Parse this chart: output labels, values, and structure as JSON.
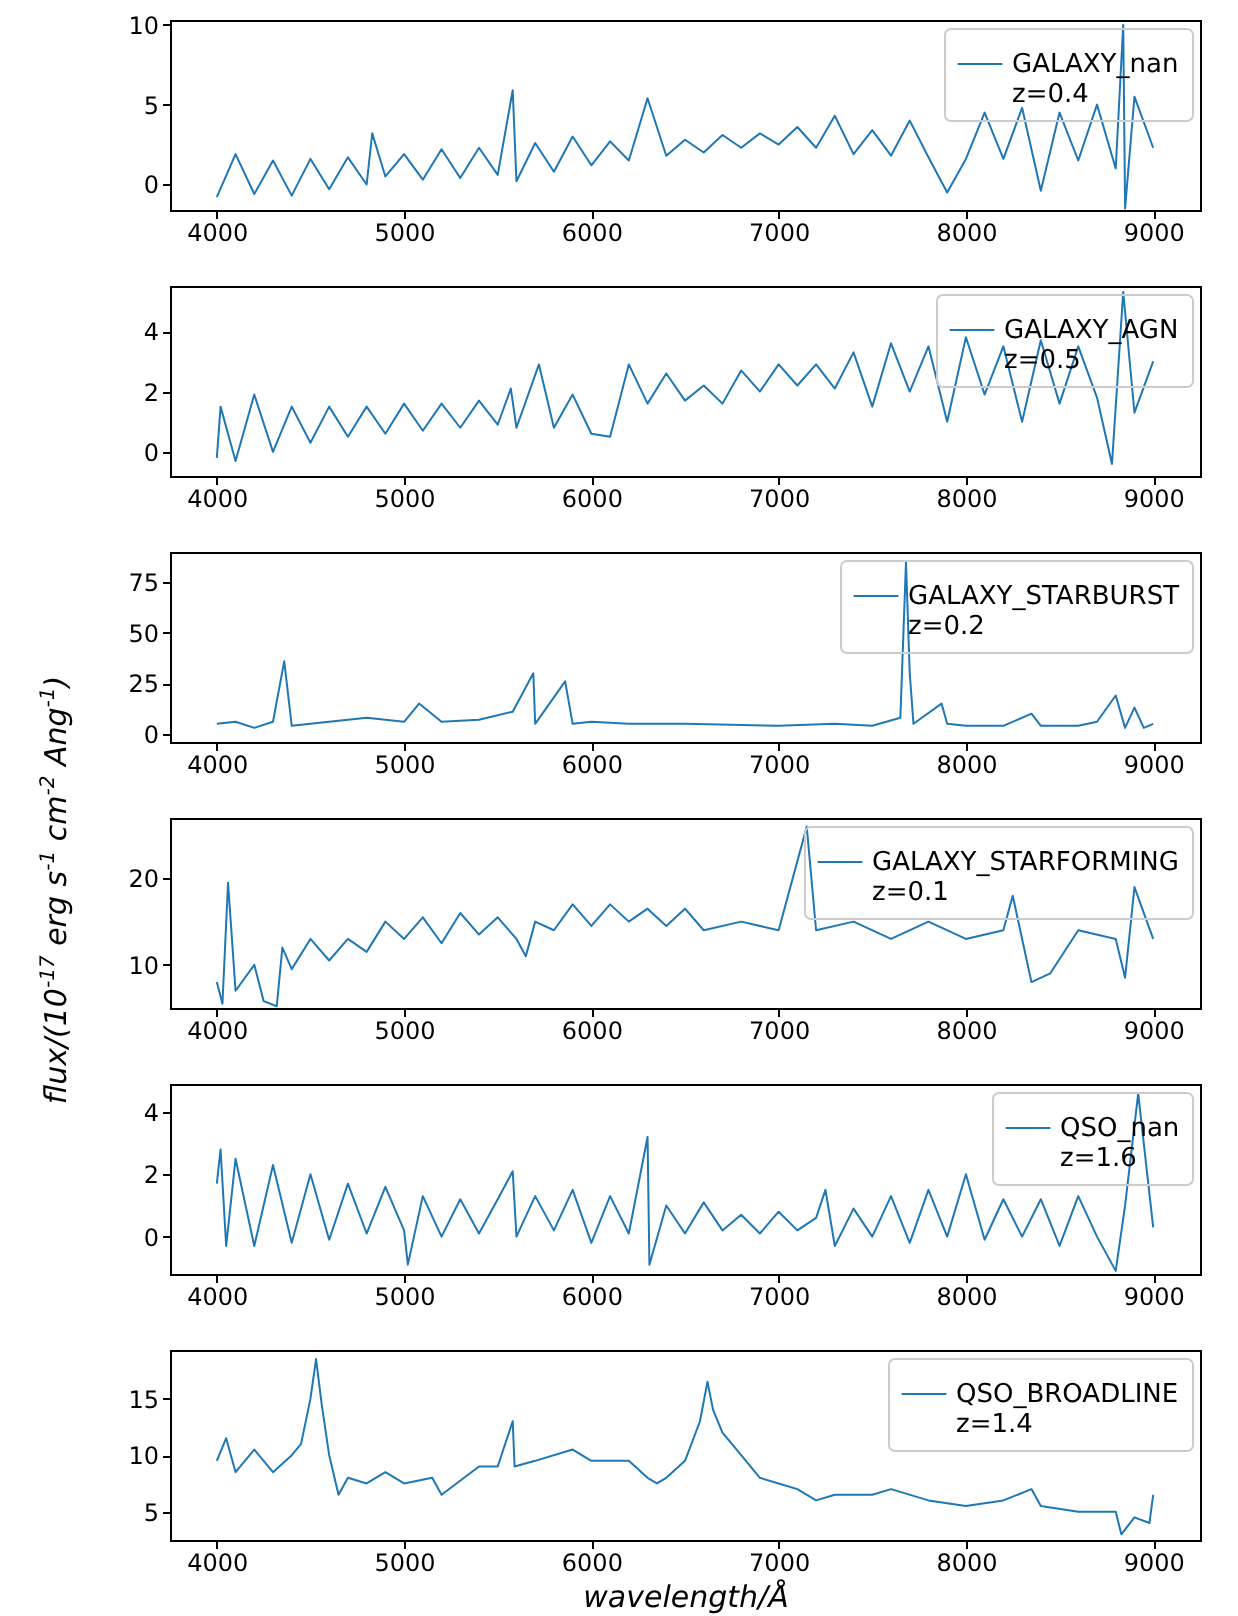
{
  "chart_data": [
    {
      "type": "line",
      "x": [
        4000,
        4100,
        4200,
        4300,
        4400,
        4500,
        4600,
        4700,
        4800,
        4830,
        4900,
        5000,
        5100,
        5200,
        5300,
        5400,
        5500,
        5580,
        5600,
        5700,
        5800,
        5900,
        6000,
        6100,
        6200,
        6300,
        6400,
        6500,
        6600,
        6700,
        6800,
        6900,
        7000,
        7100,
        7200,
        7300,
        7400,
        7500,
        7600,
        7700,
        7800,
        7900,
        8000,
        8100,
        8200,
        8300,
        8400,
        8500,
        8600,
        8700,
        8800,
        8840,
        8850,
        8900,
        9000
      ],
      "series": [
        {
          "name": "GALAXY_nan\nz=0.4",
          "color": "#1f77b4",
          "values": [
            -0.8,
            1.9,
            -0.6,
            1.5,
            -0.7,
            1.6,
            -0.3,
            1.7,
            0,
            3.2,
            0.5,
            1.9,
            0.3,
            2.2,
            0.4,
            2.3,
            0.6,
            5.9,
            0.2,
            2.6,
            0.8,
            3.0,
            1.2,
            2.7,
            1.5,
            5.4,
            1.8,
            2.8,
            2.0,
            3.1,
            2.3,
            3.2,
            2.5,
            3.6,
            2.3,
            4.3,
            1.9,
            3.4,
            1.8,
            4.0,
            1.7,
            -0.5,
            1.6,
            4.5,
            1.6,
            4.8,
            -0.4,
            4.5,
            1.5,
            5.0,
            1.0,
            10.0,
            -1.5,
            5.5,
            2.3
          ]
        }
      ],
      "xlim": [
        3750,
        9250
      ],
      "xticks": [
        4000,
        5000,
        6000,
        7000,
        8000,
        9000
      ],
      "ylim": [
        -1.6,
        10.3
      ],
      "yticks": [
        0,
        5,
        10
      ],
      "legend": "top right"
    },
    {
      "type": "line",
      "x": [
        4000,
        4020,
        4100,
        4200,
        4300,
        4400,
        4500,
        4600,
        4700,
        4800,
        4900,
        5000,
        5100,
        5200,
        5300,
        5400,
        5500,
        5570,
        5600,
        5720,
        5800,
        5900,
        6000,
        6100,
        6200,
        6300,
        6400,
        6500,
        6600,
        6700,
        6800,
        6900,
        7000,
        7100,
        7200,
        7300,
        7400,
        7500,
        7600,
        7700,
        7800,
        7900,
        8000,
        8100,
        8200,
        8300,
        8400,
        8500,
        8600,
        8700,
        8780,
        8840,
        8900,
        9000
      ],
      "series": [
        {
          "name": "GALAXY_AGN\nz=0.5",
          "color": "#1f77b4",
          "values": [
            -0.2,
            1.5,
            -0.3,
            1.9,
            0,
            1.5,
            0.3,
            1.5,
            0.5,
            1.5,
            0.6,
            1.6,
            0.7,
            1.6,
            0.8,
            1.7,
            0.9,
            2.1,
            0.8,
            2.9,
            0.8,
            1.9,
            0.6,
            0.5,
            2.9,
            1.6,
            2.6,
            1.7,
            2.2,
            1.6,
            2.7,
            2.0,
            2.9,
            2.2,
            2.9,
            2.1,
            3.3,
            1.5,
            3.6,
            2.0,
            3.5,
            1.0,
            3.8,
            1.9,
            3.5,
            1.0,
            3.7,
            1.6,
            3.5,
            1.8,
            -0.4,
            5.3,
            1.3,
            3.0
          ]
        }
      ],
      "xlim": [
        3750,
        9250
      ],
      "xticks": [
        4000,
        5000,
        6000,
        7000,
        8000,
        9000
      ],
      "ylim": [
        -0.8,
        5.5
      ],
      "yticks": [
        0,
        2,
        4
      ],
      "legend": "top right"
    },
    {
      "type": "line",
      "x": [
        4000,
        4100,
        4200,
        4300,
        4360,
        4400,
        4500,
        4600,
        4800,
        5000,
        5080,
        5200,
        5400,
        5580,
        5690,
        5700,
        5860,
        5900,
        6000,
        6200,
        6500,
        7000,
        7300,
        7500,
        7650,
        7680,
        7700,
        7720,
        7870,
        7900,
        8000,
        8200,
        8350,
        8400,
        8600,
        8700,
        8800,
        8850,
        8900,
        8950,
        9000
      ],
      "series": [
        {
          "name": "GALAXY_STARBURST\nz=0.2",
          "color": "#1f77b4",
          "values": [
            5,
            6,
            3,
            6,
            36,
            4,
            5,
            6,
            8,
            6,
            15,
            6,
            7,
            11,
            30,
            5,
            26,
            5,
            6,
            5,
            5,
            4,
            5,
            4,
            8,
            85,
            30,
            5,
            15,
            5,
            4,
            4,
            10,
            4,
            4,
            6,
            19,
            3,
            13,
            3,
            5
          ]
        }
      ],
      "xlim": [
        3750,
        9250
      ],
      "xticks": [
        4000,
        5000,
        6000,
        7000,
        8000,
        9000
      ],
      "ylim": [
        -4,
        90
      ],
      "yticks": [
        0,
        25,
        50,
        75
      ],
      "legend": "top right"
    },
    {
      "type": "line",
      "x": [
        4000,
        4030,
        4060,
        4100,
        4200,
        4250,
        4320,
        4350,
        4400,
        4500,
        4600,
        4700,
        4800,
        4900,
        5000,
        5100,
        5200,
        5300,
        5400,
        5500,
        5600,
        5650,
        5700,
        5800,
        5900,
        6000,
        6100,
        6200,
        6300,
        6400,
        6500,
        6600,
        6800,
        7000,
        7150,
        7200,
        7400,
        7600,
        7800,
        8000,
        8200,
        8250,
        8350,
        8450,
        8600,
        8800,
        8850,
        8900,
        9000
      ],
      "series": [
        {
          "name": "GALAXY_STARFORMING\nz=0.1",
          "color": "#1f77b4",
          "values": [
            8,
            5.5,
            19.5,
            7,
            10,
            5.8,
            5.2,
            12,
            9.5,
            13,
            10.5,
            13,
            11.5,
            15,
            13,
            15.5,
            12.5,
            16,
            13.5,
            15.5,
            13,
            11,
            15,
            14,
            17,
            14.5,
            17,
            15,
            16.5,
            14.5,
            16.5,
            14,
            15,
            14,
            26,
            14,
            15,
            13,
            15,
            13,
            14,
            18,
            8,
            9,
            14,
            13,
            8.5,
            19,
            13
          ]
        }
      ],
      "xlim": [
        3750,
        9250
      ],
      "xticks": [
        4000,
        5000,
        6000,
        7000,
        8000,
        9000
      ],
      "ylim": [
        5,
        27
      ],
      "yticks": [
        10,
        20
      ],
      "legend": "top right",
      "ylabel": "flux/(10$^{-17}$ erg s$^{-1}$ cm$^{-2}$ Ang$^{-1}$)"
    },
    {
      "type": "line",
      "x": [
        4000,
        4020,
        4050,
        4100,
        4200,
        4300,
        4400,
        4500,
        4600,
        4700,
        4800,
        4900,
        5000,
        5020,
        5100,
        5200,
        5300,
        5400,
        5500,
        5580,
        5600,
        5700,
        5800,
        5900,
        6000,
        6100,
        6200,
        6300,
        6310,
        6400,
        6500,
        6600,
        6700,
        6800,
        6900,
        7000,
        7100,
        7200,
        7250,
        7300,
        7400,
        7500,
        7600,
        7700,
        7800,
        7900,
        8000,
        8100,
        8200,
        8300,
        8400,
        8500,
        8600,
        8700,
        8800,
        8850,
        8920,
        9000
      ],
      "series": [
        {
          "name": "QSO_nan\nz=1.6",
          "color": "#1f77b4",
          "values": [
            1.7,
            2.8,
            -0.3,
            2.5,
            -0.3,
            2.3,
            -0.2,
            2.0,
            -0.1,
            1.7,
            0.1,
            1.6,
            0.2,
            -0.9,
            1.3,
            0,
            1.2,
            0.1,
            1.2,
            2.1,
            0,
            1.3,
            0.2,
            1.5,
            -0.2,
            1.3,
            0.1,
            3.2,
            -0.9,
            1.0,
            0.1,
            1.1,
            0.2,
            0.7,
            0.1,
            0.8,
            0.2,
            0.6,
            1.5,
            -0.3,
            0.9,
            0,
            1.3,
            -0.2,
            1.5,
            0,
            2.0,
            -0.1,
            1.2,
            0,
            1.2,
            -0.3,
            1.3,
            0,
            -1.1,
            1.0,
            4.6,
            0.3
          ]
        }
      ],
      "xlim": [
        3750,
        9250
      ],
      "xticks": [
        4000,
        5000,
        6000,
        7000,
        8000,
        9000
      ],
      "ylim": [
        -1.2,
        4.9
      ],
      "yticks": [
        0,
        2,
        4
      ],
      "legend": "top right"
    },
    {
      "type": "line",
      "x": [
        4000,
        4050,
        4100,
        4200,
        4300,
        4400,
        4450,
        4500,
        4530,
        4560,
        4600,
        4650,
        4700,
        4800,
        4900,
        5000,
        5150,
        5200,
        5400,
        5500,
        5580,
        5590,
        5700,
        5900,
        6000,
        6200,
        6300,
        6350,
        6400,
        6500,
        6580,
        6620,
        6650,
        6700,
        6800,
        6900,
        7000,
        7100,
        7200,
        7300,
        7500,
        7600,
        7800,
        8000,
        8200,
        8350,
        8400,
        8600,
        8800,
        8830,
        8900,
        8980,
        9000
      ],
      "series": [
        {
          "name": "QSO_BROADLINE\nz=1.4",
          "color": "#1f77b4",
          "values": [
            9.5,
            11.5,
            8.5,
            10.5,
            8.5,
            10,
            11,
            15,
            18.5,
            14.5,
            10,
            6.5,
            8,
            7.5,
            8.5,
            7.5,
            8,
            6.5,
            9,
            9,
            13,
            9,
            9.5,
            10.5,
            9.5,
            9.5,
            8,
            7.5,
            8,
            9.5,
            13,
            16.5,
            14,
            12,
            10,
            8,
            7.5,
            7,
            6,
            6.5,
            6.5,
            7,
            6,
            5.5,
            6,
            7,
            5.5,
            5,
            5,
            3,
            4.5,
            4,
            6.5
          ]
        }
      ],
      "xlim": [
        3750,
        9250
      ],
      "xticks": [
        4000,
        5000,
        6000,
        7000,
        8000,
        9000
      ],
      "ylim": [
        2.5,
        19.3
      ],
      "yticks": [
        5,
        10,
        15
      ],
      "legend": "top right",
      "xlabel": "wavelength/Å"
    }
  ]
}
